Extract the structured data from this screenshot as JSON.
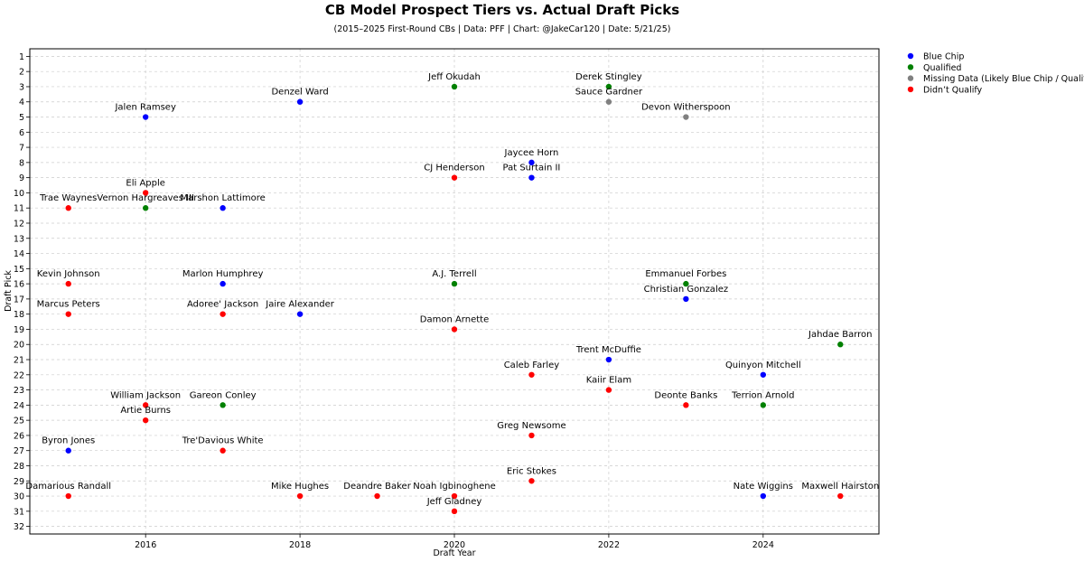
{
  "chart_data": {
    "type": "scatter",
    "title": "CB Model Prospect Tiers vs. Actual Draft Picks",
    "subtitle": "(2015–2025 First-Round CBs | Data: PFF | Chart: @JakeCar120 | Date: 5/21/25)",
    "xlabel": "Draft Year",
    "ylabel": "Draft Pick",
    "xlim": [
      2014.5,
      2025.5
    ],
    "ylim": [
      32.5,
      0.5
    ],
    "y_inverted": true,
    "grid": true,
    "legend_position": "outside-top-right",
    "x_ticks": [
      2016,
      2018,
      2020,
      2022,
      2024
    ],
    "y_ticks": [
      1,
      2,
      3,
      4,
      5,
      6,
      7,
      8,
      9,
      10,
      11,
      12,
      13,
      14,
      15,
      16,
      17,
      18,
      19,
      20,
      21,
      22,
      23,
      24,
      25,
      26,
      27,
      28,
      29,
      30,
      31,
      32
    ],
    "series": [
      {
        "name": "Blue Chip",
        "color": "#0000ff",
        "points": [
          {
            "label": "Jalen Ramsey",
            "x": 2016,
            "y": 5
          },
          {
            "label": "Denzel Ward",
            "x": 2018,
            "y": 4
          },
          {
            "label": "Jaycee Horn",
            "x": 2021,
            "y": 8
          },
          {
            "label": "Pat Surtain II",
            "x": 2021,
            "y": 9
          },
          {
            "label": "Marshon Lattimore",
            "x": 2017,
            "y": 11
          },
          {
            "label": "Marlon Humphrey",
            "x": 2017,
            "y": 16
          },
          {
            "label": "Christian Gonzalez",
            "x": 2023,
            "y": 17
          },
          {
            "label": "Jaire Alexander",
            "x": 2018,
            "y": 18
          },
          {
            "label": "Trent McDuffie",
            "x": 2022,
            "y": 21
          },
          {
            "label": "Quinyon Mitchell",
            "x": 2024,
            "y": 22
          },
          {
            "label": "Byron Jones",
            "x": 2015,
            "y": 27
          },
          {
            "label": "Nate Wiggins",
            "x": 2024,
            "y": 30
          }
        ]
      },
      {
        "name": "Qualified",
        "color": "#008000",
        "points": [
          {
            "label": "Jeff Okudah",
            "x": 2020,
            "y": 3
          },
          {
            "label": "Derek Stingley",
            "x": 2022,
            "y": 3
          },
          {
            "label": "Vernon Hargreaves III",
            "x": 2016,
            "y": 11
          },
          {
            "label": "A.J. Terrell",
            "x": 2020,
            "y": 16
          },
          {
            "label": "Emmanuel Forbes",
            "x": 2023,
            "y": 16
          },
          {
            "label": "Jahdae Barron",
            "x": 2025,
            "y": 20
          },
          {
            "label": "Gareon Conley",
            "x": 2017,
            "y": 24
          },
          {
            "label": "Terrion Arnold",
            "x": 2024,
            "y": 24
          }
        ]
      },
      {
        "name": "Missing Data (Likely Blue Chip / Qualified)",
        "color": "#808080",
        "points": [
          {
            "label": "Sauce Gardner",
            "x": 2022,
            "y": 4
          },
          {
            "label": "Devon Witherspoon",
            "x": 2023,
            "y": 5
          }
        ]
      },
      {
        "name": "Didn’t Qualify",
        "color": "#ff0000",
        "points": [
          {
            "label": "CJ Henderson",
            "x": 2020,
            "y": 9
          },
          {
            "label": "Eli Apple",
            "x": 2016,
            "y": 10
          },
          {
            "label": "Trae Waynes",
            "x": 2015,
            "y": 11
          },
          {
            "label": "Kevin Johnson",
            "x": 2015,
            "y": 16
          },
          {
            "label": "Marcus Peters",
            "x": 2015,
            "y": 18
          },
          {
            "label": "Adoree' Jackson",
            "x": 2017,
            "y": 18
          },
          {
            "label": "Damon Arnette",
            "x": 2020,
            "y": 19
          },
          {
            "label": "Caleb Farley",
            "x": 2021,
            "y": 22
          },
          {
            "label": "Kaiir Elam",
            "x": 2022,
            "y": 23
          },
          {
            "label": "William Jackson",
            "x": 2016,
            "y": 24
          },
          {
            "label": "Deonte Banks",
            "x": 2023,
            "y": 24
          },
          {
            "label": "Artie Burns",
            "x": 2016,
            "y": 25
          },
          {
            "label": "Greg Newsome",
            "x": 2021,
            "y": 26
          },
          {
            "label": "Tre'Davious White",
            "x": 2017,
            "y": 27
          },
          {
            "label": "Eric Stokes",
            "x": 2021,
            "y": 29
          },
          {
            "label": "Damarious Randall",
            "x": 2015,
            "y": 30
          },
          {
            "label": "Mike Hughes",
            "x": 2018,
            "y": 30
          },
          {
            "label": "Deandre Baker",
            "x": 2019,
            "y": 30
          },
          {
            "label": "Noah Igbinoghene",
            "x": 2020,
            "y": 30
          },
          {
            "label": "Maxwell Hairston",
            "x": 2025,
            "y": 30
          },
          {
            "label": "Jeff Gladney",
            "x": 2020,
            "y": 31
          }
        ]
      }
    ]
  }
}
